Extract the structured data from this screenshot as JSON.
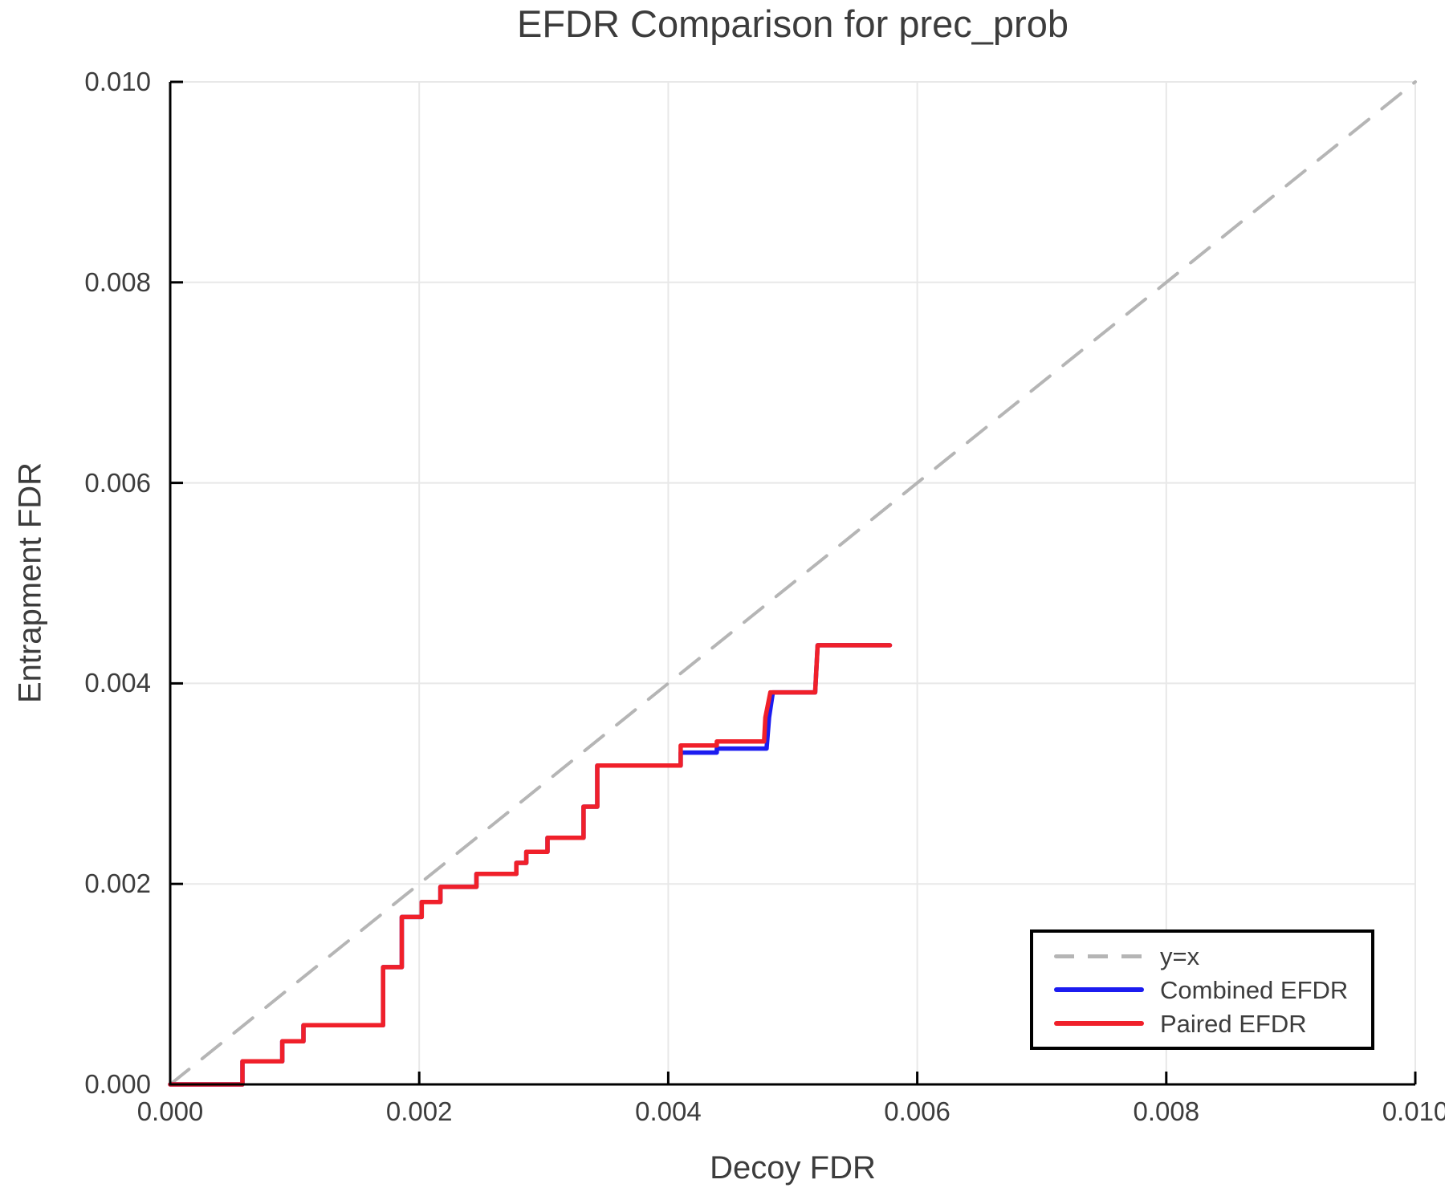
{
  "chart_data": {
    "type": "line",
    "title": "EFDR Comparison for prec_prob",
    "xlabel": "Decoy FDR",
    "ylabel": "Entrapment FDR",
    "xlim": [
      0.0,
      0.01
    ],
    "ylim": [
      0.0,
      0.01
    ],
    "grid": true,
    "legend_position": "bottom-right",
    "x_ticks": [
      0.0,
      0.002,
      0.004,
      0.006,
      0.008,
      0.01
    ],
    "x_tick_labels": [
      "0.000",
      "0.002",
      "0.004",
      "0.006",
      "0.008",
      "0.010"
    ],
    "y_ticks": [
      0.0,
      0.002,
      0.004,
      0.006,
      0.008,
      0.01
    ],
    "y_tick_labels": [
      "0.000",
      "0.002",
      "0.004",
      "0.006",
      "0.008",
      "0.010"
    ],
    "colors": {
      "identity_line": "#b5b5b5",
      "combined_efdr": "#1c1cf0",
      "paired_efdr": "#f0202a",
      "gridline": "#e8e8e8",
      "axis": "#000000",
      "text": "#3d3d3d"
    },
    "series": [
      {
        "name": "y=x",
        "style": "dashed",
        "color": "#b5b5b5",
        "points": [
          [
            0.0,
            0.0
          ],
          [
            0.01,
            0.01
          ]
        ]
      },
      {
        "name": "Combined EFDR",
        "style": "solid",
        "color": "#1c1cf0",
        "points": [
          [
            0.0,
            0.0
          ],
          [
            0.00058,
            0.0
          ],
          [
            0.00058,
            0.00023
          ],
          [
            0.0009,
            0.00023
          ],
          [
            0.0009,
            0.00043
          ],
          [
            0.00107,
            0.00043
          ],
          [
            0.00107,
            0.00059
          ],
          [
            0.00171,
            0.00059
          ],
          [
            0.00171,
            0.00117
          ],
          [
            0.00186,
            0.00117
          ],
          [
            0.00186,
            0.00167
          ],
          [
            0.00202,
            0.00167
          ],
          [
            0.00202,
            0.00182
          ],
          [
            0.00217,
            0.00182
          ],
          [
            0.00217,
            0.00197
          ],
          [
            0.00246,
            0.00197
          ],
          [
            0.00246,
            0.0021
          ],
          [
            0.00278,
            0.0021
          ],
          [
            0.00278,
            0.00221
          ],
          [
            0.00286,
            0.00221
          ],
          [
            0.00286,
            0.00232
          ],
          [
            0.00303,
            0.00232
          ],
          [
            0.00303,
            0.00246
          ],
          [
            0.00332,
            0.00246
          ],
          [
            0.00332,
            0.00277
          ],
          [
            0.00343,
            0.00277
          ],
          [
            0.00343,
            0.00318
          ],
          [
            0.0041,
            0.00318
          ],
          [
            0.0041,
            0.00331
          ],
          [
            0.00439,
            0.00331
          ],
          [
            0.00439,
            0.00335
          ],
          [
            0.00479,
            0.00335
          ],
          [
            0.00481,
            0.00366
          ],
          [
            0.00484,
            0.00391
          ],
          [
            0.00518,
            0.00391
          ],
          [
            0.0052,
            0.00438
          ],
          [
            0.00578,
            0.00438
          ]
        ]
      },
      {
        "name": "Paired EFDR",
        "style": "solid",
        "color": "#f0202a",
        "points": [
          [
            0.0,
            0.0
          ],
          [
            0.00058,
            0.0
          ],
          [
            0.00058,
            0.00023
          ],
          [
            0.0009,
            0.00023
          ],
          [
            0.0009,
            0.00043
          ],
          [
            0.00107,
            0.00043
          ],
          [
            0.00107,
            0.00059
          ],
          [
            0.00171,
            0.00059
          ],
          [
            0.00171,
            0.00117
          ],
          [
            0.00186,
            0.00117
          ],
          [
            0.00186,
            0.00167
          ],
          [
            0.00202,
            0.00167
          ],
          [
            0.00202,
            0.00182
          ],
          [
            0.00217,
            0.00182
          ],
          [
            0.00217,
            0.00197
          ],
          [
            0.00246,
            0.00197
          ],
          [
            0.00246,
            0.0021
          ],
          [
            0.00278,
            0.0021
          ],
          [
            0.00278,
            0.00221
          ],
          [
            0.00286,
            0.00221
          ],
          [
            0.00286,
            0.00232
          ],
          [
            0.00303,
            0.00232
          ],
          [
            0.00303,
            0.00246
          ],
          [
            0.00332,
            0.00246
          ],
          [
            0.00332,
            0.00277
          ],
          [
            0.00343,
            0.00277
          ],
          [
            0.00343,
            0.00318
          ],
          [
            0.0041,
            0.00318
          ],
          [
            0.0041,
            0.00338
          ],
          [
            0.00439,
            0.00338
          ],
          [
            0.00439,
            0.00342
          ],
          [
            0.00477,
            0.00342
          ],
          [
            0.00478,
            0.00366
          ],
          [
            0.00482,
            0.00391
          ],
          [
            0.00518,
            0.00391
          ],
          [
            0.0052,
            0.00438
          ],
          [
            0.00578,
            0.00438
          ]
        ]
      }
    ]
  }
}
